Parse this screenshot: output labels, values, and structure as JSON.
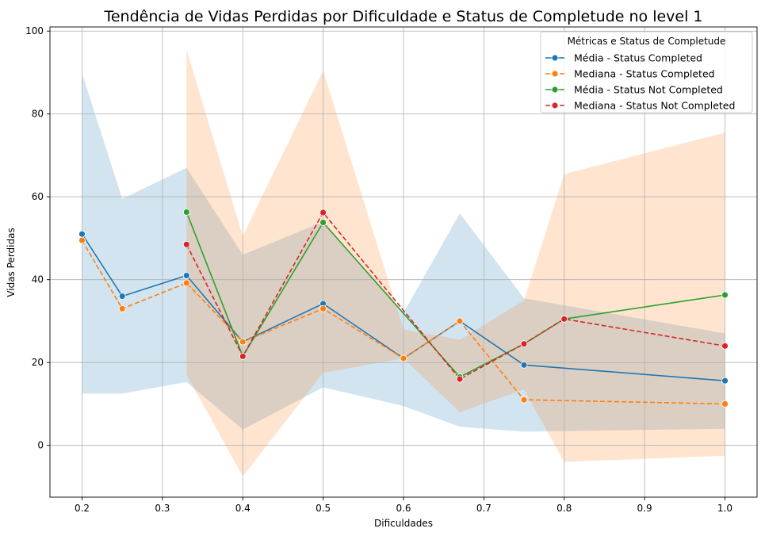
{
  "chart_data": {
    "type": "line",
    "title": "Tendência de Vidas Perdidas por Dificuldade e Status de Completude no level 1",
    "xlabel": "Dificuldades",
    "ylabel": "Vidas Perdidas",
    "xlim": [
      0.16,
      1.04
    ],
    "ylim": [
      -12.5,
      101
    ],
    "xticks": [
      "0.2",
      "0.3",
      "0.4",
      "0.5",
      "0.6",
      "0.7",
      "0.8",
      "0.9",
      "1.0"
    ],
    "yticks": [
      "0",
      "20",
      "40",
      "60",
      "80",
      "100"
    ],
    "grid": true,
    "legend": {
      "title": "Métricas e Status de Completude",
      "placement": "top-right"
    },
    "bands": [
      {
        "color": "#1f77b4",
        "opacity": 0.2,
        "x": [
          0.2,
          0.25,
          0.33,
          0.4,
          0.5,
          0.6,
          0.67,
          0.75,
          1.0
        ],
        "upper": [
          89.8,
          59.5,
          67.0,
          46.0,
          54.0,
          32.0,
          56.0,
          35.5,
          27.0
        ],
        "lower": [
          12.5,
          12.5,
          15.3,
          3.8,
          14.0,
          9.5,
          4.5,
          3.3,
          4.0
        ]
      },
      {
        "color": "#ff7f0e",
        "opacity": 0.2,
        "x": [
          0.33,
          0.4,
          0.5,
          0.6,
          0.67,
          0.75,
          0.8,
          1.0
        ],
        "upper": [
          95.5,
          50.5,
          90.5,
          28.0,
          25.5,
          35.0,
          65.5,
          75.5
        ],
        "lower": [
          17.0,
          -7.5,
          17.5,
          21.0,
          8.0,
          13.5,
          -4.0,
          -2.5
        ]
      }
    ],
    "series": [
      {
        "name": "Média - Status Completed",
        "color": "#1f77b4",
        "dash": "solid",
        "x": [
          0.2,
          0.25,
          0.33,
          0.4,
          0.5,
          0.6,
          0.67,
          0.75,
          1.0
        ],
        "y": [
          51.0,
          36.0,
          41.0,
          25.0,
          34.2,
          21.0,
          30.0,
          19.4,
          15.6
        ]
      },
      {
        "name": "Mediana - Status Completed",
        "color": "#ff7f0e",
        "dash": "dashed",
        "x": [
          0.2,
          0.25,
          0.33,
          0.4,
          0.5,
          0.6,
          0.67,
          0.75,
          1.0
        ],
        "y": [
          49.5,
          33.0,
          39.2,
          25.0,
          33.0,
          21.0,
          30.0,
          11.0,
          10.0
        ]
      },
      {
        "name": "Média - Status Not Completed",
        "color": "#2ca02c",
        "dash": "solid",
        "x": [
          0.33,
          0.4,
          0.5,
          0.67,
          0.75,
          0.8,
          1.0
        ],
        "y": [
          56.3,
          21.5,
          53.8,
          16.5,
          24.5,
          30.5,
          36.3
        ]
      },
      {
        "name": "Mediana - Status Not Completed",
        "color": "#d62728",
        "dash": "dashed",
        "x": [
          0.33,
          0.4,
          0.5,
          0.67,
          0.75,
          0.8,
          1.0
        ],
        "y": [
          48.5,
          21.5,
          56.2,
          16.0,
          24.5,
          30.5,
          24.0
        ]
      }
    ]
  }
}
